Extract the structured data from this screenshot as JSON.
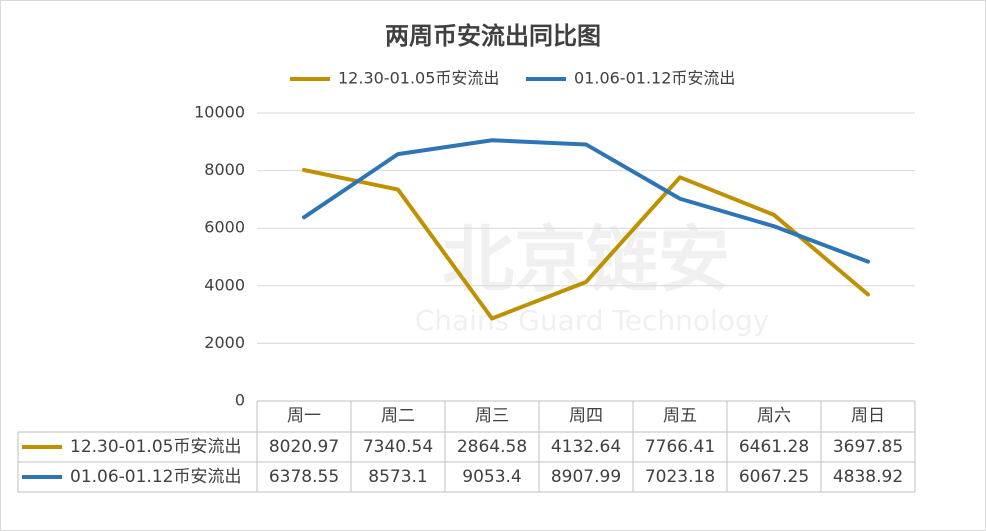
{
  "chart_data": {
    "type": "line",
    "title": "两周币安流出同比图",
    "categories": [
      "周一",
      "周二",
      "周三",
      "周四",
      "周五",
      "周六",
      "周日"
    ],
    "series": [
      {
        "name": "12.30-01.05币安流出",
        "color": "#bf9000",
        "values": [
          8020.97,
          7340.54,
          2864.58,
          4132.64,
          7766.41,
          6461.28,
          3697.85
        ]
      },
      {
        "name": "01.06-01.12币安流出",
        "color": "#2e75b6",
        "values": [
          6378.55,
          8573.1,
          9053.4,
          8907.99,
          7023.18,
          6067.25,
          4838.92
        ]
      }
    ],
    "ylim": [
      0,
      10000
    ],
    "yticks": [
      0,
      2000,
      4000,
      6000,
      8000,
      10000
    ],
    "grid": true,
    "legend": "top",
    "annotations": [
      "北京链安",
      "Chains Guard Technology"
    ]
  }
}
